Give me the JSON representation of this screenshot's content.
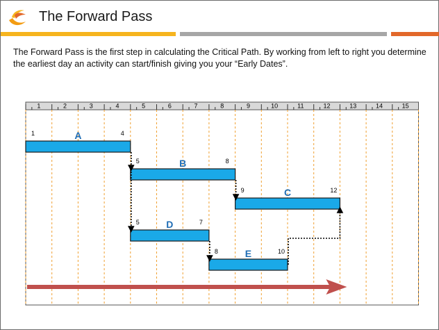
{
  "header": {
    "title": "The Forward Pass",
    "logo_icon": "phoenix-logo-icon",
    "band_colors": [
      "#f6b41e",
      "#a6a6a6",
      "#e2682a"
    ]
  },
  "intro": {
    "text": "The Forward Pass is the first step in calculating the Critical Path. By working from left to right you determine the earliest day an activity can start/finish giving you your “Early Dates”."
  },
  "diagram": {
    "days": [
      "1",
      "2",
      "3",
      "4",
      "5",
      "6",
      "7",
      "8",
      "9",
      "10",
      "11",
      "12",
      "13",
      "14",
      "15"
    ],
    "colors": {
      "bar": "#1aa9e8",
      "bar_border": "#1a1a1a",
      "grid": "#f0a030",
      "label": "#1f6db5",
      "arrow": "#c0504d"
    },
    "activities": [
      {
        "id": "A",
        "start": 1,
        "finish": 4,
        "row": 0
      },
      {
        "id": "B",
        "start": 5,
        "finish": 8,
        "row": 1
      },
      {
        "id": "C",
        "start": 9,
        "finish": 12,
        "row": 2
      },
      {
        "id": "D",
        "start": 5,
        "finish": 7,
        "row": 3
      },
      {
        "id": "E",
        "start": 8,
        "finish": 10,
        "row": 4
      }
    ],
    "dependencies": [
      {
        "from": "A",
        "to": "B"
      },
      {
        "from": "A",
        "to": "D"
      },
      {
        "from": "B",
        "to": "C"
      },
      {
        "from": "D",
        "to": "E"
      },
      {
        "from": "E",
        "to": "C"
      }
    ],
    "direction_arrow": "left-to-right"
  }
}
